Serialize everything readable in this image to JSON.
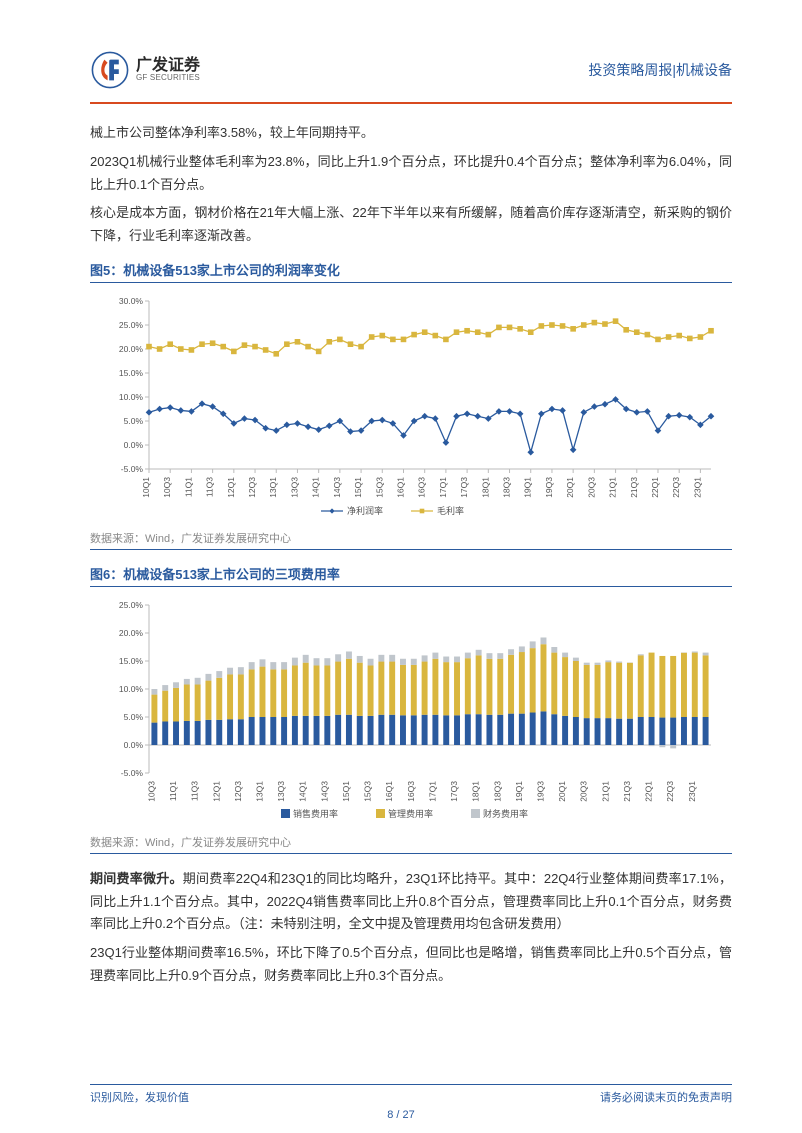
{
  "header": {
    "logo_cn": "广发证券",
    "logo_en": "GF SECURITIES",
    "right_text": "投资策略周报|机械设备"
  },
  "body": {
    "p1": "械上市公司整体净利率3.58%，较上年同期持平。",
    "p2": "2023Q1机械行业整体毛利率为23.8%，同比上升1.9个百分点，环比提升0.4个百分点；整体净利率为6.04%，同比上升0.1个百分点。",
    "p3": "核心是成本方面，钢材价格在21年大幅上涨、22年下半年以来有所缓解，随着高价库存逐渐清空，新采购的钢价下降，行业毛利率逐渐改善。",
    "p4_lead": "期间费率微升。",
    "p4_rest": "期间费率22Q4和23Q1的同比均略升，23Q1环比持平。其中：22Q4行业整体期间费率17.1%，同比上升1.1个百分点。其中，2022Q4销售费率同比上升0.8个百分点，管理费率同比上升0.1个百分点，财务费率同比上升0.2个百分点。（注：未特别注明，全文中提及管理费用均包含研发费用）",
    "p5": "23Q1行业整体期间费率16.5%，环比下降了0.5个百分点，但同比也是略增，销售费率同比上升0.5个百分点，管理费率同比上升0.9个百分点，财务费率同比上升0.3个百分点。"
  },
  "fig5": {
    "title": "图5：机械设备513家上市公司的利润率变化",
    "source": "数据来源：Wind，广发证券发展研究中心",
    "categories": [
      "10Q1",
      "10Q3",
      "11Q1",
      "11Q3",
      "12Q1",
      "12Q3",
      "13Q1",
      "13Q3",
      "14Q1",
      "14Q3",
      "15Q1",
      "15Q3",
      "16Q1",
      "16Q3",
      "17Q1",
      "17Q3",
      "18Q1",
      "18Q3",
      "19Q1",
      "19Q3",
      "20Q1",
      "20Q3",
      "21Q1",
      "21Q3",
      "22Q1",
      "22Q3",
      "23Q1"
    ],
    "n_points": 54,
    "ymin": -5,
    "ymax": 30,
    "ystep": 5,
    "series": [
      {
        "name": "净利润率",
        "marker": "diamond",
        "color": "#2a5a9e",
        "values": [
          6.8,
          7.5,
          7.8,
          7.2,
          7.0,
          8.6,
          8.0,
          6.5,
          4.5,
          5.5,
          5.2,
          3.5,
          3.0,
          4.2,
          4.5,
          3.8,
          3.2,
          4.0,
          5.0,
          2.8,
          3.0,
          5.0,
          5.2,
          4.5,
          2.0,
          5.0,
          6.0,
          5.5,
          0.5,
          6.0,
          6.5,
          6.0,
          5.5,
          7.0,
          7.0,
          6.5,
          -1.5,
          6.5,
          7.5,
          7.2,
          -1.0,
          6.8,
          8.0,
          8.5,
          9.5,
          7.5,
          6.8,
          7.0,
          3.0,
          6.0,
          6.2,
          5.8,
          4.2,
          6.0
        ]
      },
      {
        "name": "毛利率",
        "marker": "square",
        "color": "#d9b63e",
        "values": [
          20.5,
          20.0,
          21.0,
          20.0,
          19.8,
          21.0,
          21.2,
          20.5,
          19.5,
          20.8,
          20.5,
          19.8,
          19.0,
          21.0,
          21.5,
          20.5,
          19.5,
          21.5,
          22.0,
          21.0,
          20.5,
          22.5,
          22.8,
          22.0,
          22.0,
          23.0,
          23.5,
          22.8,
          22.0,
          23.5,
          23.8,
          23.5,
          23.0,
          24.5,
          24.5,
          24.2,
          23.5,
          24.8,
          25.0,
          24.8,
          24.2,
          25.0,
          25.5,
          25.2,
          25.8,
          24.0,
          23.5,
          23.0,
          22.0,
          22.5,
          22.8,
          22.2,
          22.5,
          23.8
        ]
      }
    ]
  },
  "fig6": {
    "title": "图6：机械设备513家上市公司的三项费用率",
    "source": "数据来源：Wind，广发证券发展研究中心",
    "categories": [
      "10Q3",
      "11Q1",
      "11Q3",
      "12Q1",
      "12Q3",
      "13Q1",
      "13Q3",
      "14Q1",
      "14Q3",
      "15Q1",
      "15Q3",
      "16Q1",
      "16Q3",
      "17Q1",
      "17Q3",
      "18Q1",
      "18Q3",
      "19Q1",
      "19Q3",
      "20Q1",
      "20Q3",
      "21Q1",
      "21Q3",
      "22Q1",
      "22Q3",
      "23Q1"
    ],
    "n_points": 52,
    "ymin": -5,
    "ymax": 25,
    "ystep": 5,
    "bar_width": 0.55,
    "series": [
      {
        "name": "销售费用率",
        "color": "#2a5a9e",
        "values": [
          4.0,
          4.2,
          4.2,
          4.3,
          4.3,
          4.5,
          4.5,
          4.6,
          4.6,
          5.0,
          5.0,
          5.0,
          5.0,
          5.2,
          5.2,
          5.2,
          5.2,
          5.4,
          5.4,
          5.2,
          5.2,
          5.4,
          5.4,
          5.3,
          5.3,
          5.4,
          5.4,
          5.3,
          5.3,
          5.5,
          5.5,
          5.4,
          5.4,
          5.6,
          5.6,
          5.8,
          6.0,
          5.5,
          5.2,
          5.0,
          4.8,
          4.8,
          4.8,
          4.7,
          4.7,
          5.0,
          5.0,
          4.9,
          4.9,
          5.0,
          5.0,
          5.0
        ]
      },
      {
        "name": "管理费用率",
        "color": "#d9b63e",
        "values": [
          5.0,
          5.5,
          6.0,
          6.5,
          6.5,
          7.0,
          7.5,
          8.0,
          8.0,
          8.5,
          9.0,
          8.5,
          8.5,
          9.0,
          9.5,
          9.0,
          9.0,
          9.5,
          10.0,
          9.5,
          9.0,
          9.5,
          9.5,
          9.0,
          9.0,
          9.5,
          10.0,
          9.5,
          9.5,
          10.0,
          10.5,
          10.0,
          10.0,
          10.5,
          11.0,
          11.5,
          12.0,
          11.0,
          10.5,
          10.0,
          9.5,
          9.5,
          10.0,
          10.0,
          10.0,
          11.0,
          11.5,
          11.0,
          11.0,
          11.5,
          11.5,
          11.0
        ]
      },
      {
        "name": "财务费用率",
        "color": "#c0c6cc",
        "values": [
          1.0,
          1.0,
          1.0,
          1.0,
          1.2,
          1.2,
          1.2,
          1.2,
          1.3,
          1.3,
          1.3,
          1.3,
          1.3,
          1.4,
          1.4,
          1.3,
          1.3,
          1.3,
          1.3,
          1.2,
          1.2,
          1.2,
          1.2,
          1.1,
          1.1,
          1.1,
          1.1,
          1.0,
          1.0,
          1.0,
          1.0,
          1.0,
          1.0,
          1.0,
          1.0,
          1.2,
          1.2,
          1.0,
          0.8,
          0.6,
          0.4,
          0.4,
          0.3,
          0.2,
          0.0,
          0.2,
          -0.2,
          -0.4,
          -0.6,
          0.0,
          0.2,
          0.5
        ]
      }
    ]
  },
  "footer": {
    "left": "识别风险，发现价值",
    "right": "请务必阅读末页的免责声明",
    "page": "8 / 27"
  },
  "colors": {
    "accent_blue": "#2a5a9e",
    "accent_red": "#d84a1f",
    "accent_yellow": "#d9b63e",
    "grey": "#c0c6cc"
  }
}
